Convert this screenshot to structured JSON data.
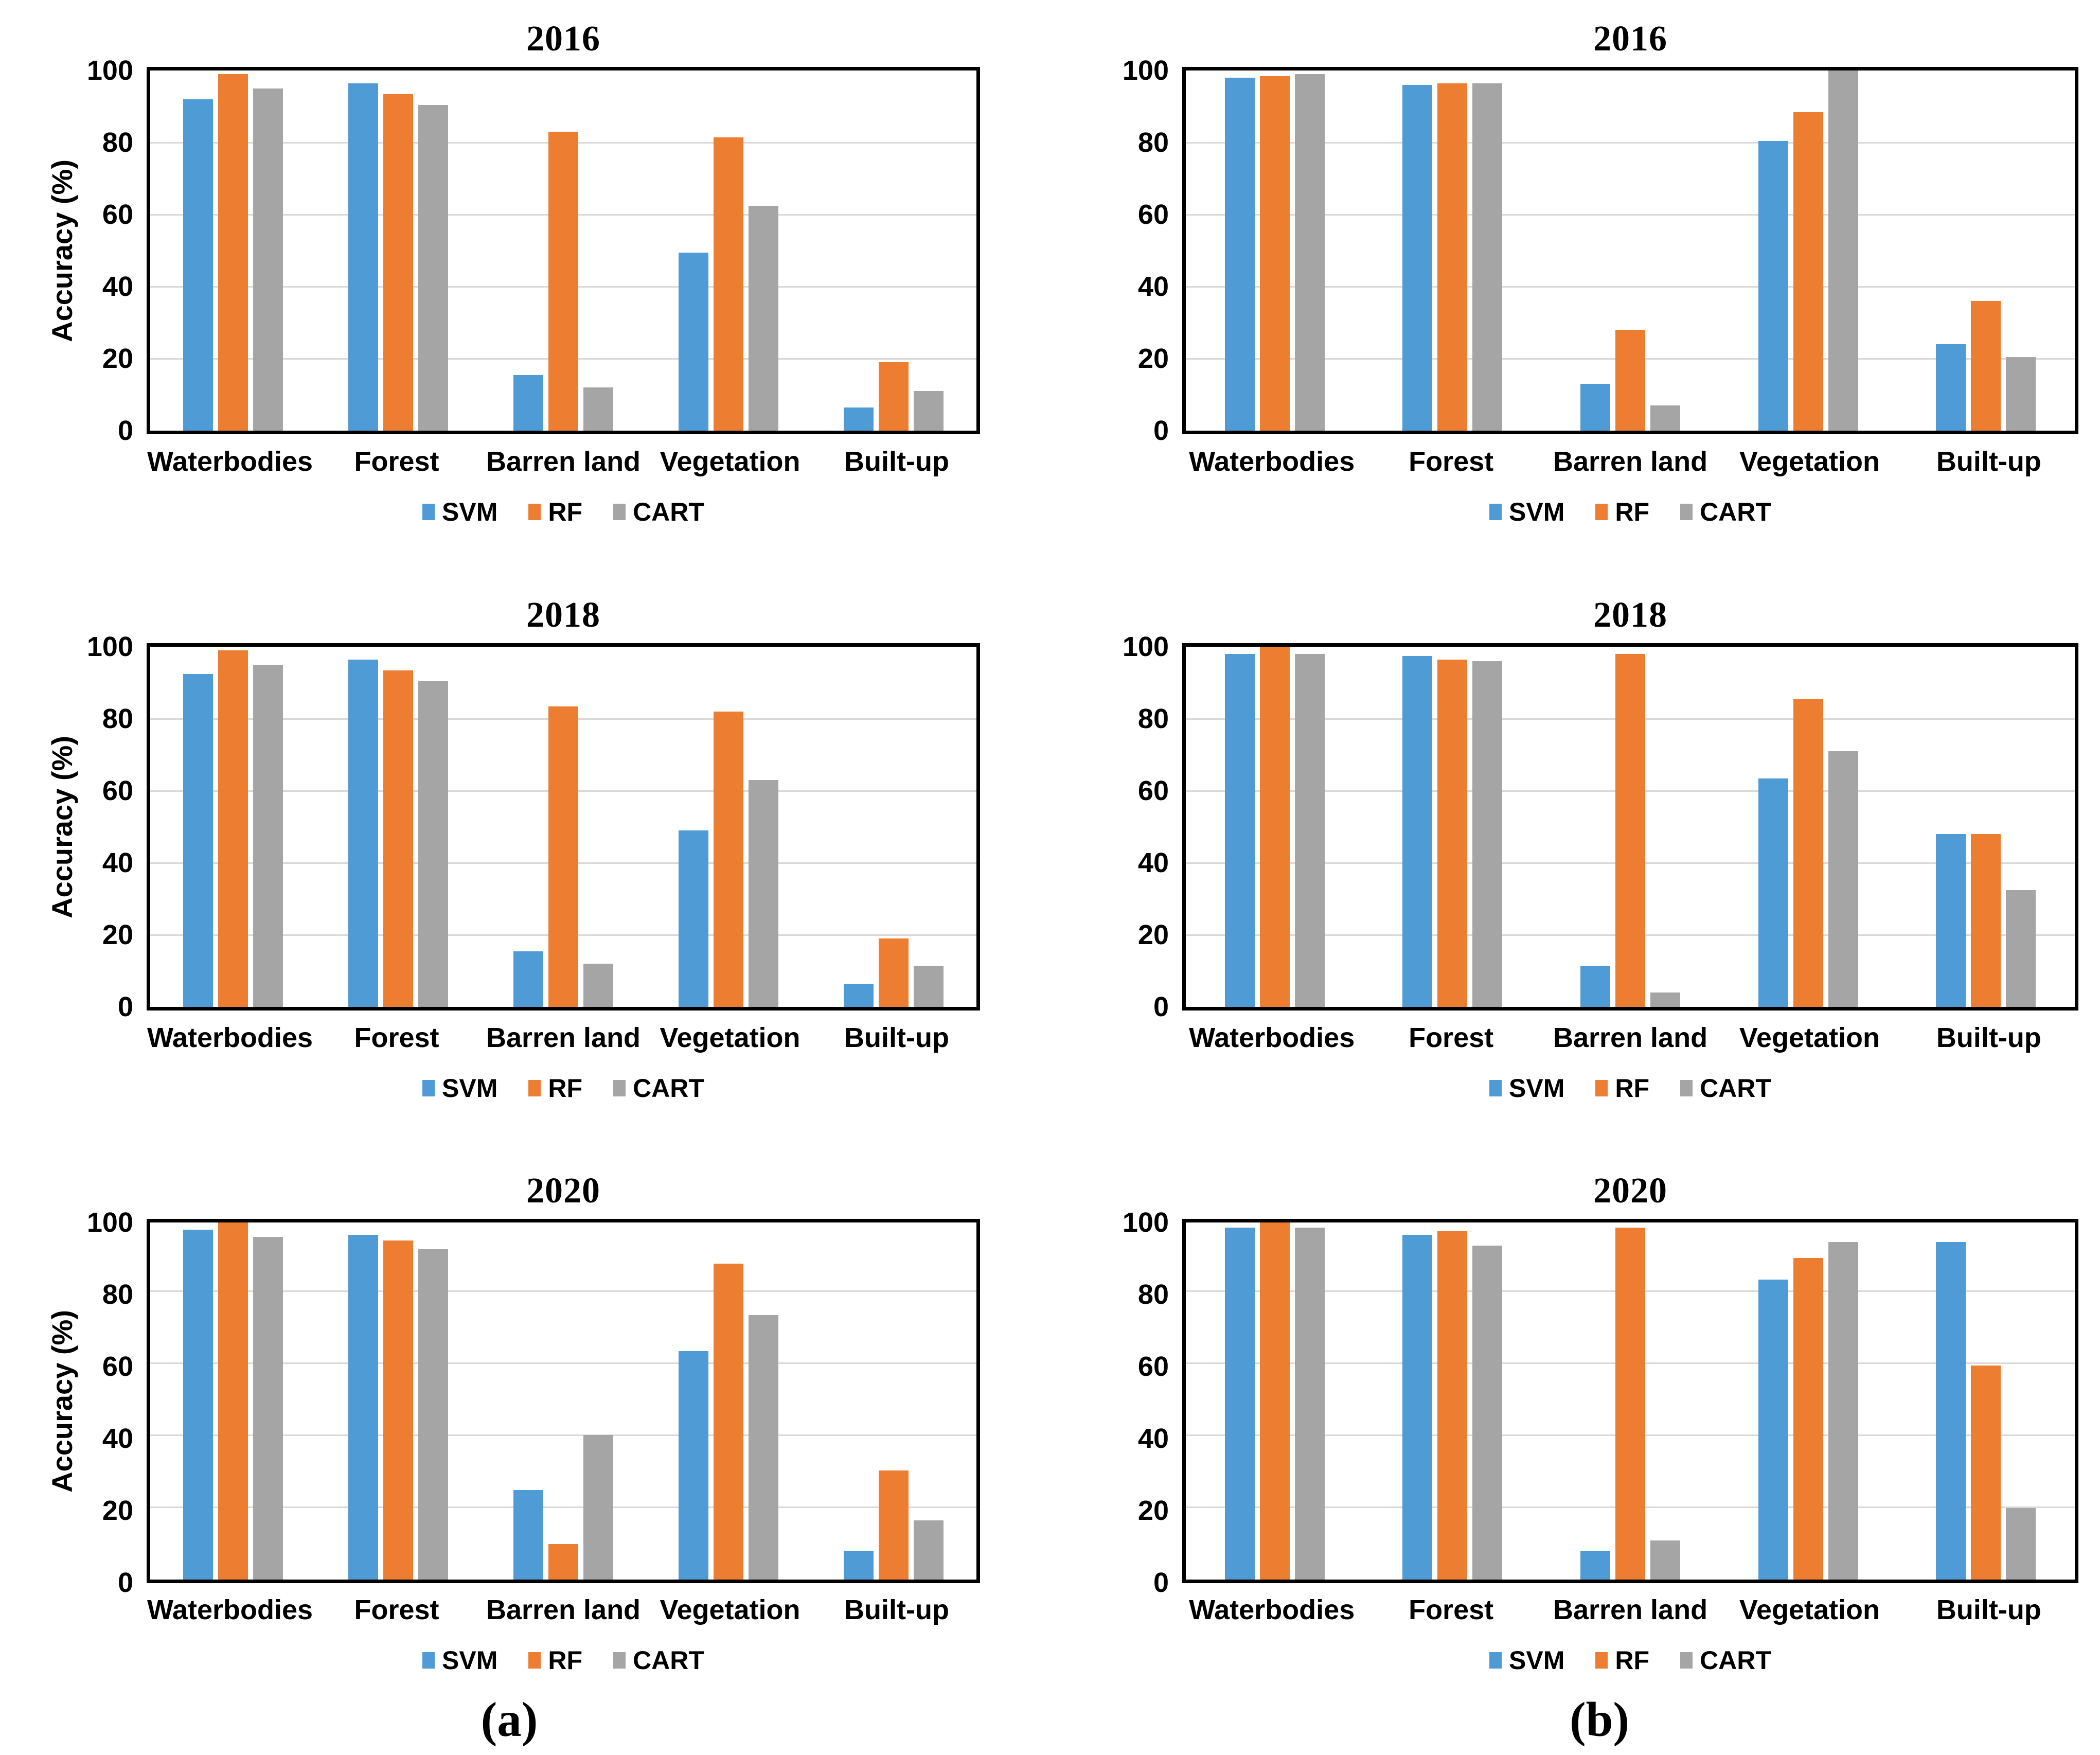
{
  "page": {
    "background": "#ffffff"
  },
  "panel_labels": {
    "a": "(a)",
    "b": "(b)"
  },
  "legend": {
    "items": [
      "SVM",
      "RF",
      "CART"
    ]
  },
  "colors": {
    "SVM": "#4F9BD5",
    "RF": "#ED7D31",
    "CART": "#A5A5A5",
    "gridline": "#D9D9D9",
    "axis_border": "#000000"
  },
  "chart_data": [
    {
      "type": "bar",
      "title": "2016",
      "panel": "a",
      "ylabel": "Accuracy (%)",
      "xlabel": "",
      "ylim": [
        0,
        100
      ],
      "yticks": [
        0,
        20,
        40,
        60,
        80,
        100
      ],
      "grid": true,
      "legend_position": "bottom",
      "categories": [
        "Waterbodies",
        "Forest",
        "Barren land",
        "Vegetation",
        "Built-up"
      ],
      "series": [
        {
          "name": "SVM",
          "values": [
            92,
            96.5,
            15.5,
            49.5,
            6.5
          ]
        },
        {
          "name": "RF",
          "values": [
            99,
            93.5,
            83,
            81.5,
            19
          ]
        },
        {
          "name": "CART",
          "values": [
            95,
            90.5,
            12,
            62.5,
            11
          ]
        }
      ]
    },
    {
      "type": "bar",
      "title": "2016",
      "panel": "b",
      "ylabel": "",
      "xlabel": "",
      "ylim": [
        0,
        100
      ],
      "yticks": [
        0,
        20,
        40,
        60,
        80,
        100
      ],
      "grid": true,
      "legend_position": "bottom",
      "categories": [
        "Waterbodies",
        "Forest",
        "Barren land",
        "Vegetation",
        "Built-up"
      ],
      "series": [
        {
          "name": "SVM",
          "values": [
            98,
            96,
            13,
            80.5,
            24
          ]
        },
        {
          "name": "RF",
          "values": [
            98.5,
            96.5,
            28,
            88.5,
            36
          ]
        },
        {
          "name": "CART",
          "values": [
            99,
            96.5,
            7,
            100,
            20.5
          ]
        }
      ]
    },
    {
      "type": "bar",
      "title": "2018",
      "panel": "a",
      "ylabel": "Accuracy (%)",
      "xlabel": "",
      "ylim": [
        0,
        100
      ],
      "yticks": [
        0,
        20,
        40,
        60,
        80,
        100
      ],
      "grid": true,
      "legend_position": "bottom",
      "categories": [
        "Waterbodies",
        "Forest",
        "Barren land",
        "Vegetation",
        "Built-up"
      ],
      "series": [
        {
          "name": "SVM",
          "values": [
            92.5,
            96.5,
            15.5,
            49,
            6.5
          ]
        },
        {
          "name": "RF",
          "values": [
            99,
            93.5,
            83.5,
            82,
            19
          ]
        },
        {
          "name": "CART",
          "values": [
            95,
            90.5,
            12,
            63,
            11.5
          ]
        }
      ]
    },
    {
      "type": "bar",
      "title": "2018",
      "panel": "b",
      "ylabel": "",
      "xlabel": "",
      "ylim": [
        0,
        100
      ],
      "yticks": [
        0,
        20,
        40,
        60,
        80,
        100
      ],
      "grid": true,
      "legend_position": "bottom",
      "categories": [
        "Waterbodies",
        "Forest",
        "Barren land",
        "Vegetation",
        "Built-up"
      ],
      "series": [
        {
          "name": "SVM",
          "values": [
            98,
            97.5,
            11.5,
            63.5,
            48
          ]
        },
        {
          "name": "RF",
          "values": [
            100,
            96.5,
            98,
            85.5,
            48
          ]
        },
        {
          "name": "CART",
          "values": [
            98,
            96,
            4,
            71,
            32.5
          ]
        }
      ]
    },
    {
      "type": "bar",
      "title": "2020",
      "panel": "a",
      "panel_label": "(a)",
      "ylabel": "Accuracy (%)",
      "xlabel": "",
      "ylim": [
        0,
        100
      ],
      "yticks": [
        0,
        20,
        40,
        60,
        80,
        100
      ],
      "grid": true,
      "legend_position": "bottom",
      "categories": [
        "Waterbodies",
        "Forest",
        "Barren land",
        "Vegetation",
        "Built-up"
      ],
      "series": [
        {
          "name": "SVM",
          "values": [
            98,
            96.5,
            25,
            64,
            8
          ]
        },
        {
          "name": "RF",
          "values": [
            100,
            95,
            10,
            88.5,
            30.5
          ]
        },
        {
          "name": "CART",
          "values": [
            96,
            92.5,
            40.5,
            74,
            16.5
          ]
        }
      ]
    },
    {
      "type": "bar",
      "title": "2020",
      "panel": "b",
      "panel_label": "(b)",
      "ylabel": "",
      "xlabel": "",
      "ylim": [
        0,
        100
      ],
      "yticks": [
        0,
        20,
        40,
        60,
        80,
        100
      ],
      "grid": true,
      "legend_position": "bottom",
      "categories": [
        "Waterbodies",
        "Forest",
        "Barren land",
        "Vegetation",
        "Built-up"
      ],
      "series": [
        {
          "name": "SVM",
          "values": [
            98.5,
            96.5,
            8,
            84,
            94.5
          ]
        },
        {
          "name": "RF",
          "values": [
            100,
            97.5,
            98.5,
            90,
            60
          ]
        },
        {
          "name": "CART",
          "values": [
            98.5,
            93.5,
            11,
            94.5,
            20
          ]
        }
      ]
    }
  ]
}
